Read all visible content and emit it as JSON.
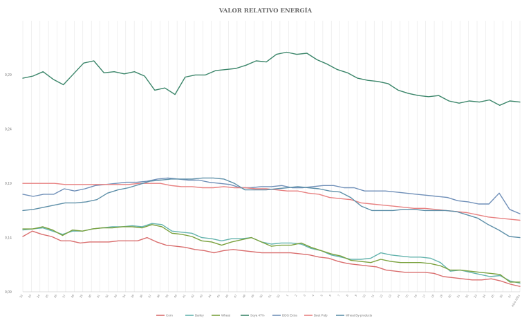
{
  "chart_data": {
    "type": "line",
    "title": "VALOR RELATIVO ENERGÍA",
    "xlabel": "",
    "ylabel": "",
    "y_ticks": [
      "0,09",
      "0,14",
      "0,19",
      "0,24",
      "0,29"
    ],
    "y_tick_values": [
      0.09,
      0.14,
      0.19,
      0.24,
      0.29
    ],
    "ylim": [
      0.09,
      0.34
    ],
    "x_ticks": [
      "22",
      "23",
      "24",
      "25",
      "26",
      "27",
      "28",
      "29",
      "30",
      "31",
      "32",
      "33",
      "34",
      "35",
      "36",
      "37",
      "38",
      "39",
      "40",
      "41",
      "42",
      "43",
      "44",
      "45",
      "46",
      "47",
      "48",
      "49",
      "50",
      "51",
      "52",
      "1",
      "2",
      "3",
      "4",
      "5",
      "6",
      "7",
      "8",
      "9",
      "10",
      "11",
      "12",
      "13",
      "14",
      "15",
      "16",
      "17",
      "18",
      "19",
      "20",
      "21",
      "22",
      "23",
      "24",
      "25",
      "26",
      "27",
      "AGO 2021"
    ],
    "grid": "vertical",
    "legend_position": "bottom",
    "series": [
      {
        "name": "Corn",
        "color": "#d96d6d",
        "values": [
          0.141,
          0.146,
          0.143,
          0.141,
          0.137,
          0.137,
          0.135,
          0.136,
          0.136,
          0.136,
          0.137,
          0.137,
          0.137,
          0.14,
          0.136,
          0.133,
          0.132,
          0.131,
          0.129,
          0.128,
          0.126,
          0.128,
          0.129,
          0.128,
          0.127,
          0.126,
          0.126,
          0.126,
          0.126,
          0.125,
          0.124,
          0.122,
          0.121,
          0.118,
          0.116,
          0.115,
          0.114,
          0.113,
          0.11,
          0.109,
          0.108,
          0.108,
          0.108,
          0.107,
          0.104,
          0.103,
          0.102,
          0.101,
          0.101,
          0.102,
          0.1,
          0.097,
          0.095
        ]
      },
      {
        "name": "Barley",
        "color": "#63b3ad",
        "values": [
          0.147,
          0.148,
          0.149,
          0.146,
          0.143,
          0.146,
          0.146,
          0.148,
          0.149,
          0.15,
          0.15,
          0.151,
          0.15,
          0.153,
          0.152,
          0.146,
          0.145,
          0.144,
          0.14,
          0.139,
          0.137,
          0.139,
          0.139,
          0.14,
          0.136,
          0.134,
          0.135,
          0.135,
          0.134,
          0.13,
          0.128,
          0.124,
          0.122,
          0.12,
          0.12,
          0.121,
          0.126,
          0.124,
          0.123,
          0.122,
          0.122,
          0.121,
          0.117,
          0.109,
          0.11,
          0.108,
          0.106,
          0.104,
          0.105,
          0.1,
          0.098
        ]
      },
      {
        "name": "Wheat",
        "color": "#7aa13d",
        "values": [
          0.148,
          0.148,
          0.15,
          0.147,
          0.142,
          0.147,
          0.146,
          0.148,
          0.149,
          0.149,
          0.15,
          0.15,
          0.149,
          0.152,
          0.15,
          0.144,
          0.143,
          0.141,
          0.137,
          0.136,
          0.133,
          0.136,
          0.138,
          0.14,
          0.136,
          0.132,
          0.133,
          0.133,
          0.135,
          0.131,
          0.128,
          0.125,
          0.123,
          0.119,
          0.118,
          0.117,
          0.12,
          0.118,
          0.117,
          0.117,
          0.117,
          0.116,
          0.114,
          0.11,
          0.11,
          0.109,
          0.108,
          0.107,
          0.106,
          0.099,
          0.099
        ]
      },
      {
        "name": "Soya 47%",
        "color": "#3a8569",
        "values": [
          0.287,
          0.289,
          0.293,
          0.286,
          0.281,
          0.291,
          0.301,
          0.303,
          0.292,
          0.293,
          0.291,
          0.293,
          0.289,
          0.276,
          0.278,
          0.272,
          0.288,
          0.29,
          0.29,
          0.294,
          0.295,
          0.296,
          0.299,
          0.303,
          0.302,
          0.309,
          0.311,
          0.309,
          0.31,
          0.304,
          0.3,
          0.295,
          0.292,
          0.287,
          0.285,
          0.284,
          0.282,
          0.276,
          0.273,
          0.271,
          0.27,
          0.271,
          0.266,
          0.264,
          0.266,
          0.265,
          0.267,
          0.262,
          0.266,
          0.265
        ]
      },
      {
        "name": "DDG Extra",
        "color": "#6f8fb8",
        "values": [
          0.18,
          0.178,
          0.18,
          0.18,
          0.185,
          0.183,
          0.185,
          0.188,
          0.189,
          0.19,
          0.191,
          0.191,
          0.192,
          0.194,
          0.195,
          0.194,
          0.193,
          0.193,
          0.191,
          0.19,
          0.189,
          0.186,
          0.186,
          0.187,
          0.187,
          0.188,
          0.186,
          0.186,
          0.187,
          0.188,
          0.188,
          0.186,
          0.186,
          0.183,
          0.183,
          0.183,
          0.182,
          0.181,
          0.18,
          0.179,
          0.178,
          0.177,
          0.174,
          0.173,
          0.171,
          0.171,
          0.181,
          0.166,
          0.162
        ]
      },
      {
        "name": "Beet Pulp",
        "color": "#e88080",
        "values": [
          0.19,
          0.19,
          0.19,
          0.19,
          0.189,
          0.189,
          0.189,
          0.189,
          0.189,
          0.189,
          0.189,
          0.19,
          0.19,
          0.19,
          0.188,
          0.187,
          0.187,
          0.186,
          0.186,
          0.187,
          0.186,
          0.186,
          0.185,
          0.185,
          0.184,
          0.183,
          0.183,
          0.181,
          0.18,
          0.177,
          0.176,
          0.175,
          0.172,
          0.171,
          0.17,
          0.169,
          0.168,
          0.167,
          0.167,
          0.166,
          0.165,
          0.164,
          0.163,
          0.161,
          0.159,
          0.158,
          0.157,
          0.156
        ]
      },
      {
        "name": "Wheat By-products",
        "color": "#5d8fa8",
        "values": [
          0.165,
          0.166,
          0.168,
          0.17,
          0.172,
          0.172,
          0.173,
          0.175,
          0.181,
          0.184,
          0.186,
          0.189,
          0.192,
          0.193,
          0.194,
          0.194,
          0.194,
          0.195,
          0.195,
          0.194,
          0.19,
          0.184,
          0.184,
          0.184,
          0.185,
          0.186,
          0.187,
          0.186,
          0.185,
          0.183,
          0.182,
          0.177,
          0.169,
          0.165,
          0.165,
          0.165,
          0.166,
          0.166,
          0.165,
          0.165,
          0.165,
          0.164,
          0.161,
          0.158,
          0.152,
          0.147,
          0.141,
          0.14
        ]
      }
    ]
  }
}
